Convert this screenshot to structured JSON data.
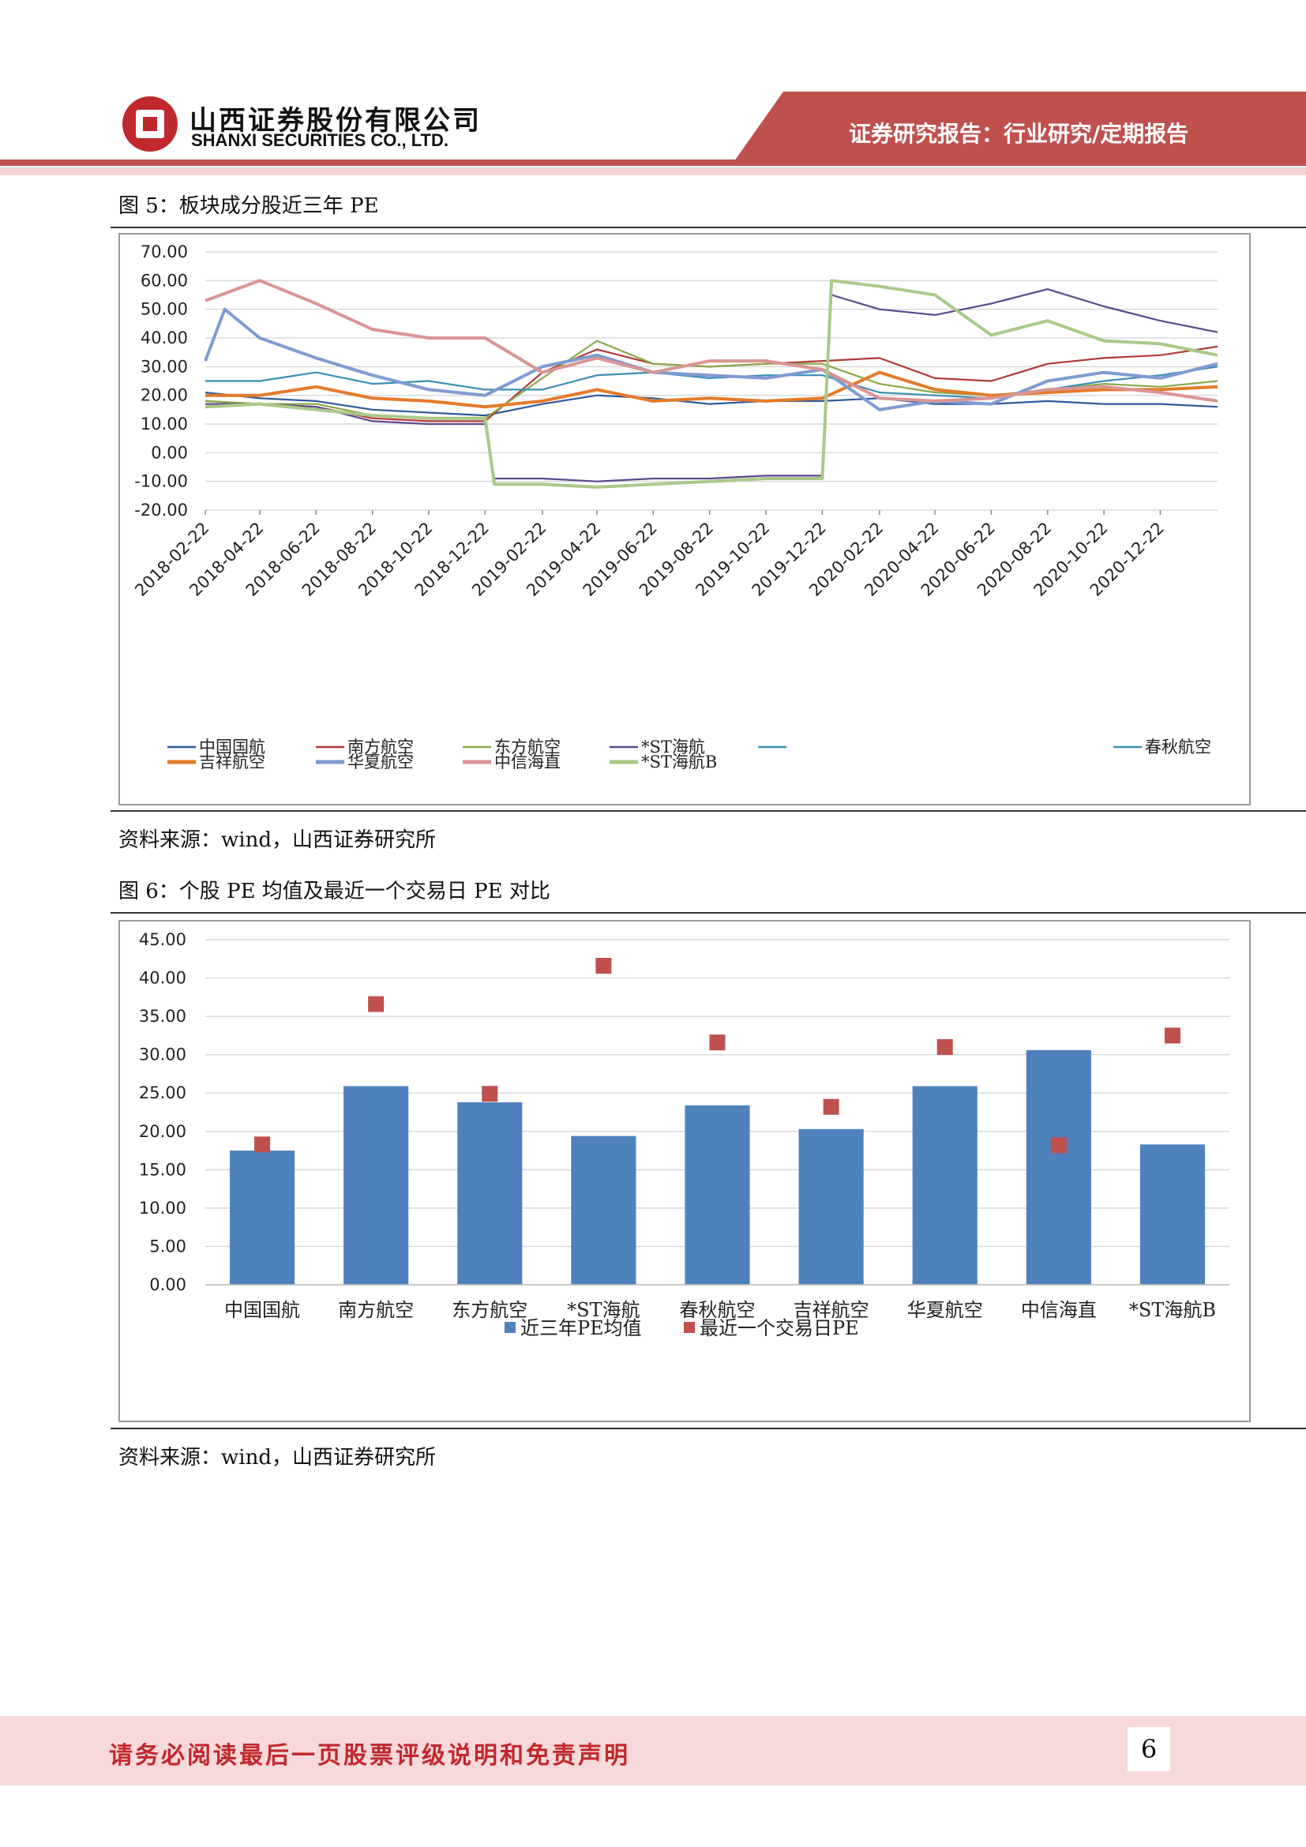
{
  "header": {
    "company_cn": "山西证券股份有限公司",
    "company_en": "SHANXI SECURITIES CO., LTD.",
    "report_type": "证券研究报告：行业研究/定期报告"
  },
  "figure5": {
    "title": "图 5：板块成分股近三年 PE",
    "source": "资料来源：wind，山西证券研究所"
  },
  "figure6": {
    "title": "图 6：个股 PE 均值及最近一个交易日 PE  对比",
    "source": "资料来源：wind，山西证券研究所"
  },
  "footer": {
    "disclaimer": "请务必阅读最后一页股票评级说明和免责声明",
    "page_number": "6"
  },
  "chart_data": [
    {
      "type": "line",
      "title": "",
      "ylim": [
        -20,
        70
      ],
      "y_ticks": [
        "70.00",
        "60.00",
        "50.00",
        "40.00",
        "30.00",
        "20.00",
        "10.00",
        "0.00",
        "-10.00",
        "-20.00"
      ],
      "x_ticks": [
        "2018-02-22",
        "2018-04-22",
        "2018-06-22",
        "2018-08-22",
        "2018-10-22",
        "2018-12-22",
        "2019-02-22",
        "2019-04-22",
        "2019-06-22",
        "2019-08-22",
        "2019-10-22",
        "2019-12-22",
        "2020-02-22",
        "2020-04-22",
        "2020-06-22",
        "2020-08-22",
        "2020-10-22",
        "2020-12-22"
      ],
      "x_range": [
        "2018-02-22",
        "2021-02-22"
      ],
      "legend_position": "bottom",
      "series": [
        {
          "name": "中国国航",
          "color": "#2e5a9c",
          "x": [
            "2018-02-22",
            "2018-04-22",
            "2018-06-22",
            "2018-08-22",
            "2018-10-22",
            "2018-12-22",
            "2019-02-22",
            "2019-04-22",
            "2019-06-22",
            "2019-08-22",
            "2019-10-22",
            "2019-12-22",
            "2020-02-22",
            "2020-04-22",
            "2020-06-22",
            "2020-08-22",
            "2020-10-22",
            "2020-12-22",
            "2021-02-22"
          ],
          "values": [
            21,
            19,
            18,
            15,
            14,
            13,
            17,
            20,
            19,
            17,
            18,
            18,
            19,
            17,
            17,
            18,
            17,
            17,
            16
          ]
        },
        {
          "name": "南方航空",
          "color": "#b03a37",
          "x": [
            "2018-02-22",
            "2018-04-22",
            "2018-06-22",
            "2018-08-22",
            "2018-10-22",
            "2018-12-22",
            "2019-02-22",
            "2019-04-22",
            "2019-06-22",
            "2019-08-22",
            "2019-10-22",
            "2019-12-22",
            "2020-02-22",
            "2020-04-22",
            "2020-06-22",
            "2020-08-22",
            "2020-10-22",
            "2020-12-22",
            "2021-02-22"
          ],
          "values": [
            18,
            17,
            16,
            12,
            11,
            11,
            28,
            36,
            31,
            30,
            31,
            32,
            33,
            26,
            25,
            31,
            33,
            34,
            37
          ]
        },
        {
          "name": "东方航空",
          "color": "#8aa84a",
          "x": [
            "2018-02-22",
            "2018-04-22",
            "2018-06-22",
            "2018-08-22",
            "2018-10-22",
            "2018-12-22",
            "2019-02-22",
            "2019-04-22",
            "2019-06-22",
            "2019-08-22",
            "2019-10-22",
            "2019-12-22",
            "2020-02-22",
            "2020-04-22",
            "2020-06-22",
            "2020-08-22",
            "2020-10-22",
            "2020-12-22",
            "2021-02-22"
          ],
          "values": [
            18,
            17,
            17,
            13,
            12,
            12,
            26,
            39,
            31,
            30,
            31,
            31,
            24,
            21,
            20,
            22,
            24,
            23,
            25
          ]
        },
        {
          "name": "*ST海航",
          "color": "#5b4a8c",
          "x": [
            "2018-02-22",
            "2018-04-22",
            "2018-06-22",
            "2018-08-22",
            "2018-10-22",
            "2018-12-22",
            "2019-01-01",
            "2019-02-22",
            "2019-04-22",
            "2019-06-22",
            "2019-08-22",
            "2019-10-22",
            "2019-12-22",
            "2020-01-01",
            "2020-02-22",
            "2020-04-22",
            "2020-06-22",
            "2020-08-22",
            "2020-10-22",
            "2020-12-22",
            "2021-02-22"
          ],
          "values": [
            17,
            17,
            16,
            11,
            10,
            10,
            -9,
            -9,
            -10,
            -9,
            -9,
            -8,
            -8,
            55,
            50,
            48,
            52,
            57,
            51,
            46,
            42
          ]
        },
        {
          "name": "春秋航空",
          "color": "#3a8fb5",
          "x": [
            "2018-02-22",
            "2018-04-22",
            "2018-06-22",
            "2018-08-22",
            "2018-10-22",
            "2018-12-22",
            "2019-02-22",
            "2019-04-22",
            "2019-06-22",
            "2019-08-22",
            "2019-10-22",
            "2019-12-22",
            "2020-02-22",
            "2020-04-22",
            "2020-06-22",
            "2020-08-22",
            "2020-10-22",
            "2020-12-22",
            "2021-02-22"
          ],
          "values": [
            25,
            25,
            28,
            24,
            25,
            22,
            22,
            27,
            28,
            26,
            27,
            27,
            21,
            20,
            19,
            22,
            25,
            27,
            30
          ]
        },
        {
          "name": "吉祥航空",
          "color": "#e37a2b",
          "x": [
            "2018-02-22",
            "2018-04-22",
            "2018-06-22",
            "2018-08-22",
            "2018-10-22",
            "2018-12-22",
            "2019-02-22",
            "2019-04-22",
            "2019-06-22",
            "2019-08-22",
            "2019-10-22",
            "2019-12-22",
            "2020-02-22",
            "2020-04-22",
            "2020-06-22",
            "2020-08-22",
            "2020-10-22",
            "2020-12-22",
            "2021-02-22"
          ],
          "values": [
            20,
            20,
            23,
            19,
            18,
            16,
            18,
            22,
            18,
            19,
            18,
            19,
            28,
            22,
            20,
            21,
            22,
            22,
            23
          ]
        },
        {
          "name": "华夏航空",
          "color": "#7f9bd1",
          "x": [
            "2018-02-22",
            "2018-03-15",
            "2018-04-22",
            "2018-06-22",
            "2018-08-22",
            "2018-10-22",
            "2018-12-22",
            "2019-02-22",
            "2019-04-22",
            "2019-06-22",
            "2019-08-22",
            "2019-10-22",
            "2019-12-22",
            "2020-02-22",
            "2020-04-22",
            "2020-06-22",
            "2020-08-22",
            "2020-10-22",
            "2020-12-22",
            "2021-02-22"
          ],
          "values": [
            32,
            50,
            40,
            33,
            27,
            22,
            20,
            30,
            34,
            28,
            27,
            26,
            29,
            15,
            18,
            17,
            25,
            28,
            26,
            31
          ]
        },
        {
          "name": "中信海直",
          "color": "#d99594",
          "x": [
            "2018-02-22",
            "2018-04-22",
            "2018-06-22",
            "2018-08-22",
            "2018-10-22",
            "2018-12-22",
            "2019-02-22",
            "2019-04-22",
            "2019-06-22",
            "2019-08-22",
            "2019-10-22",
            "2019-12-22",
            "2020-02-22",
            "2020-04-22",
            "2020-06-22",
            "2020-08-22",
            "2020-10-22",
            "2020-12-22",
            "2021-02-22"
          ],
          "values": [
            53,
            60,
            52,
            43,
            40,
            40,
            28,
            33,
            28,
            32,
            32,
            29,
            19,
            18,
            19,
            22,
            23,
            21,
            18
          ]
        },
        {
          "name": "*ST海航B",
          "color": "#a9c98a",
          "x": [
            "2018-02-22",
            "2018-04-22",
            "2018-06-22",
            "2018-08-22",
            "2018-10-22",
            "2018-12-22",
            "2019-01-01",
            "2019-02-22",
            "2019-04-22",
            "2019-06-22",
            "2019-08-22",
            "2019-10-22",
            "2019-12-22",
            "2020-01-01",
            "2020-02-22",
            "2020-04-22",
            "2020-06-22",
            "2020-08-22",
            "2020-10-22",
            "2020-12-22",
            "2021-02-22"
          ],
          "values": [
            16,
            17,
            15,
            13,
            12,
            12,
            -11,
            -11,
            -12,
            -11,
            -10,
            -9,
            -9,
            60,
            58,
            55,
            41,
            46,
            39,
            38,
            34
          ]
        }
      ]
    },
    {
      "type": "bar",
      "title": "",
      "categories": [
        "中国国航",
        "南方航空",
        "东方航空",
        "*ST海航",
        "春秋航空",
        "吉祥航空",
        "华夏航空",
        "中信海直",
        "*ST海航B"
      ],
      "ylim": [
        0,
        45
      ],
      "y_ticks": [
        "45.00",
        "40.00",
        "35.00",
        "30.00",
        "25.00",
        "20.00",
        "15.00",
        "10.00",
        "5.00",
        "0.00"
      ],
      "legend_position": "bottom",
      "series": [
        {
          "name": "近三年PE均值",
          "color": "#4f81bd",
          "kind": "bar",
          "values": [
            17.5,
            25.9,
            23.8,
            19.4,
            23.4,
            20.3,
            25.9,
            30.6,
            18.3
          ]
        },
        {
          "name": "最近一个交易日PE",
          "color": "#c0504d",
          "kind": "marker",
          "values": [
            18.3,
            36.6,
            24.9,
            41.6,
            31.6,
            23.2,
            31.0,
            18.2,
            32.5
          ]
        }
      ]
    }
  ]
}
